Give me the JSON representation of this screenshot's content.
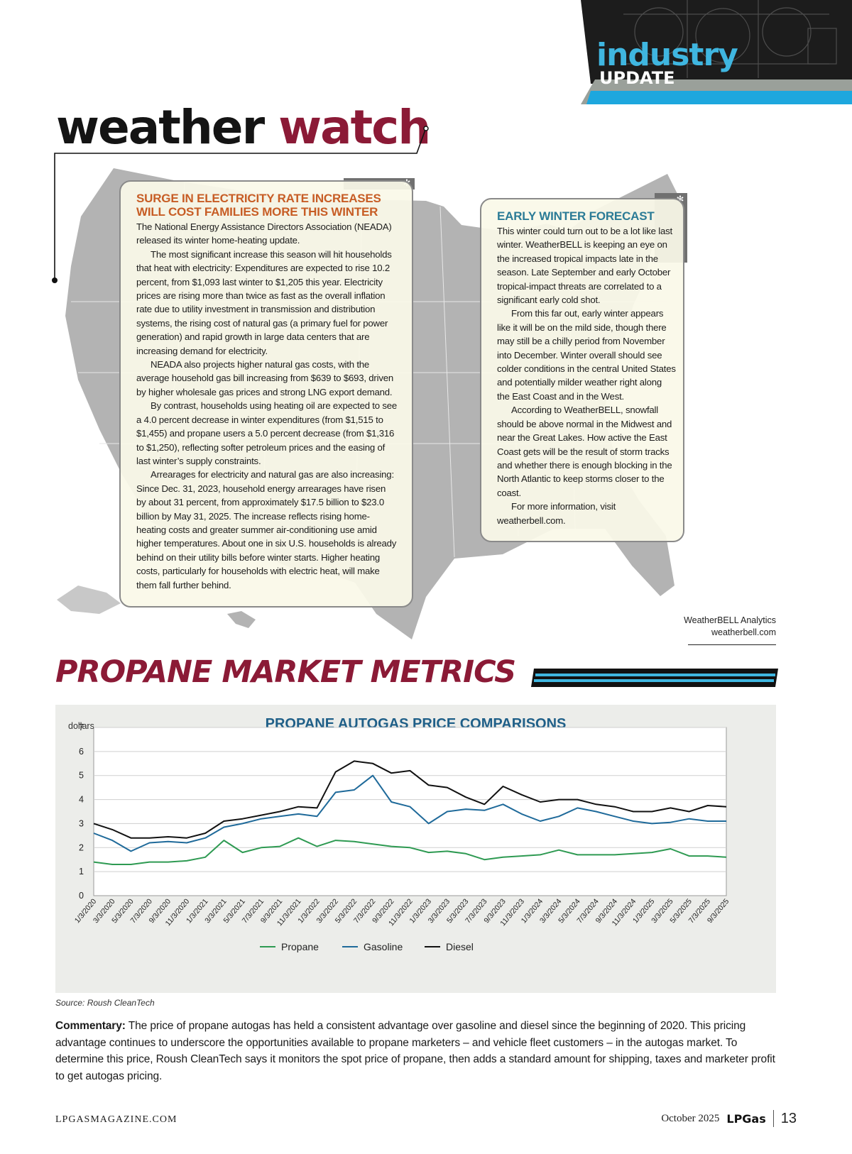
{
  "section_tag": {
    "line1": "industry",
    "line2": "UPDATE"
  },
  "weather_watch": {
    "title_part1": "weather",
    "title_part2": "watch",
    "box1": {
      "heading": "SURGE IN ELECTRICITY RATE INCREASES WILL COST FAMILIES MORE THIS WINTER",
      "paragraphs": [
        "The National Energy Assistance Directors Association (NEADA) released its winter home-heating update.",
        "The most significant increase this season will hit households that heat with electricity: Expenditures are expected to rise 10.2 percent, from $1,093 last winter to $1,205 this year. Electricity prices are rising more than twice as fast as the overall inflation rate due to utility investment in transmission and distribution systems, the rising cost of natural gas (a primary fuel for power generation) and rapid growth in large data centers that are increasing demand for electricity.",
        "NEADA also projects higher natural gas costs, with the average household gas bill increasing from $639 to $693, driven by higher wholesale gas prices and strong LNG export demand.",
        "By contrast, households using heating oil are expected to see a 4.0 percent decrease in winter expenditures (from $1,515 to $1,455) and propane users a 5.0 percent decrease (from $1,316 to $1,250), reflecting softer petroleum prices and the easing of last winter’s supply constraints.",
        "Arrearages for electricity and natural gas are also increasing: Since Dec. 31, 2023, household energy arrearages have risen by about 31 percent, from approximately $17.5 billion to $23.0 billion by May 31, 2025. The increase reflects rising home-heating costs and greater summer air-conditioning use amid higher temperatures. About one in six U.S. households is already behind on their utility bills before winter starts. Higher heating costs, particularly for households with electric heat, will make them fall further behind."
      ]
    },
    "box2": {
      "heading": "EARLY WINTER FORECAST",
      "paragraphs": [
        "This winter could turn out to be a lot like last winter. WeatherBELL is keeping an eye on the increased tropical impacts late in the season. Late September and early October tropical-impact threats are correlated to a significant early cold shot.",
        "From this far out, early winter appears like it will be on the mild side, though there may still be a chilly period from November into December. Winter overall should see colder conditions in the central United States and potentially milder weather right along the East Coast and in the West.",
        "According to WeatherBELL, snowfall should be above normal in the Midwest and near the Great Lakes. How active the East Coast gets will be the result of storm tracks and whether there is enough blocking in the North Atlantic to keep storms closer to the coast.",
        "For more information, visit weatherbell.com."
      ]
    },
    "credit_line1": "WeatherBELL Analytics",
    "credit_line2": "weatherbell.com"
  },
  "market_metrics": {
    "heading": "PROPANE MARKET METRICS",
    "source": "Source: Roush CleanTech",
    "commentary_label": "Commentary:",
    "commentary_text": " The price of propane autogas has held a consistent advantage over gasoline and diesel since the beginning of 2020. This pricing advantage continues to underscore the opportunities available to propane marketers – and vehicle fleet customers – in the autogas market. To determine this price, Roush CleanTech says it monitors the spot price of propane, then adds a standard amount for shipping, taxes and marketer profit to get autogas pricing."
  },
  "chart_data": {
    "type": "line",
    "title": "PROPANE AUTOGAS PRICE COMPARISONS",
    "ylabel": "dollars",
    "xlabel": "",
    "ylim": [
      0,
      7
    ],
    "yticks": [
      0,
      1,
      2,
      3,
      4,
      5,
      6,
      7
    ],
    "grid": true,
    "legend_position": "bottom",
    "x": [
      "1/3/2020",
      "3/3/2020",
      "5/3/2020",
      "7/3/2020",
      "9/3/2020",
      "11/3/2020",
      "1/3/2021",
      "3/3/2021",
      "5/3/2021",
      "7/3/2021",
      "9/3/2021",
      "11/3/2021",
      "1/3/2022",
      "3/3/2022",
      "5/3/2022",
      "7/3/2022",
      "9/3/2022",
      "11/3/2022",
      "1/3/2023",
      "3/3/2023",
      "5/3/2023",
      "7/3/2023",
      "9/3/2023",
      "11/3/2023",
      "1/3/2024",
      "3/3/2024",
      "5/3/2024",
      "7/3/2024",
      "9/3/2024",
      "11/3/2024",
      "1/3/2025",
      "3/3/2025",
      "5/3/2025",
      "7/3/2025",
      "9/3/2025"
    ],
    "series": [
      {
        "name": "Propane",
        "color": "#2e9a52",
        "values": [
          1.4,
          1.3,
          1.3,
          1.4,
          1.4,
          1.45,
          1.6,
          2.3,
          1.8,
          2.0,
          2.05,
          2.4,
          2.05,
          2.3,
          2.25,
          2.15,
          2.05,
          2.0,
          1.8,
          1.85,
          1.75,
          1.5,
          1.6,
          1.65,
          1.7,
          1.9,
          1.7,
          1.7,
          1.7,
          1.75,
          1.8,
          1.95,
          1.65,
          1.65,
          1.6
        ]
      },
      {
        "name": "Gasoline",
        "color": "#1f6a9a",
        "values": [
          2.6,
          2.3,
          1.85,
          2.2,
          2.25,
          2.2,
          2.4,
          2.85,
          3.0,
          3.2,
          3.3,
          3.4,
          3.3,
          4.3,
          4.4,
          5.0,
          3.9,
          3.7,
          3.0,
          3.5,
          3.6,
          3.55,
          3.8,
          3.4,
          3.1,
          3.3,
          3.65,
          3.5,
          3.3,
          3.1,
          3.0,
          3.05,
          3.2,
          3.1,
          3.1
        ]
      },
      {
        "name": "Diesel",
        "color": "#111111",
        "values": [
          3.0,
          2.75,
          2.4,
          2.4,
          2.45,
          2.4,
          2.6,
          3.1,
          3.2,
          3.35,
          3.5,
          3.7,
          3.65,
          5.15,
          5.6,
          5.5,
          5.1,
          5.2,
          4.6,
          4.5,
          4.1,
          3.8,
          4.55,
          4.2,
          3.9,
          4.0,
          4.0,
          3.8,
          3.7,
          3.5,
          3.5,
          3.65,
          3.5,
          3.75,
          3.7
        ]
      }
    ]
  },
  "footer": {
    "website": "LPGASMAGAZINE.COM",
    "date": "October 2025",
    "brand": "LPGas",
    "page": "13"
  }
}
